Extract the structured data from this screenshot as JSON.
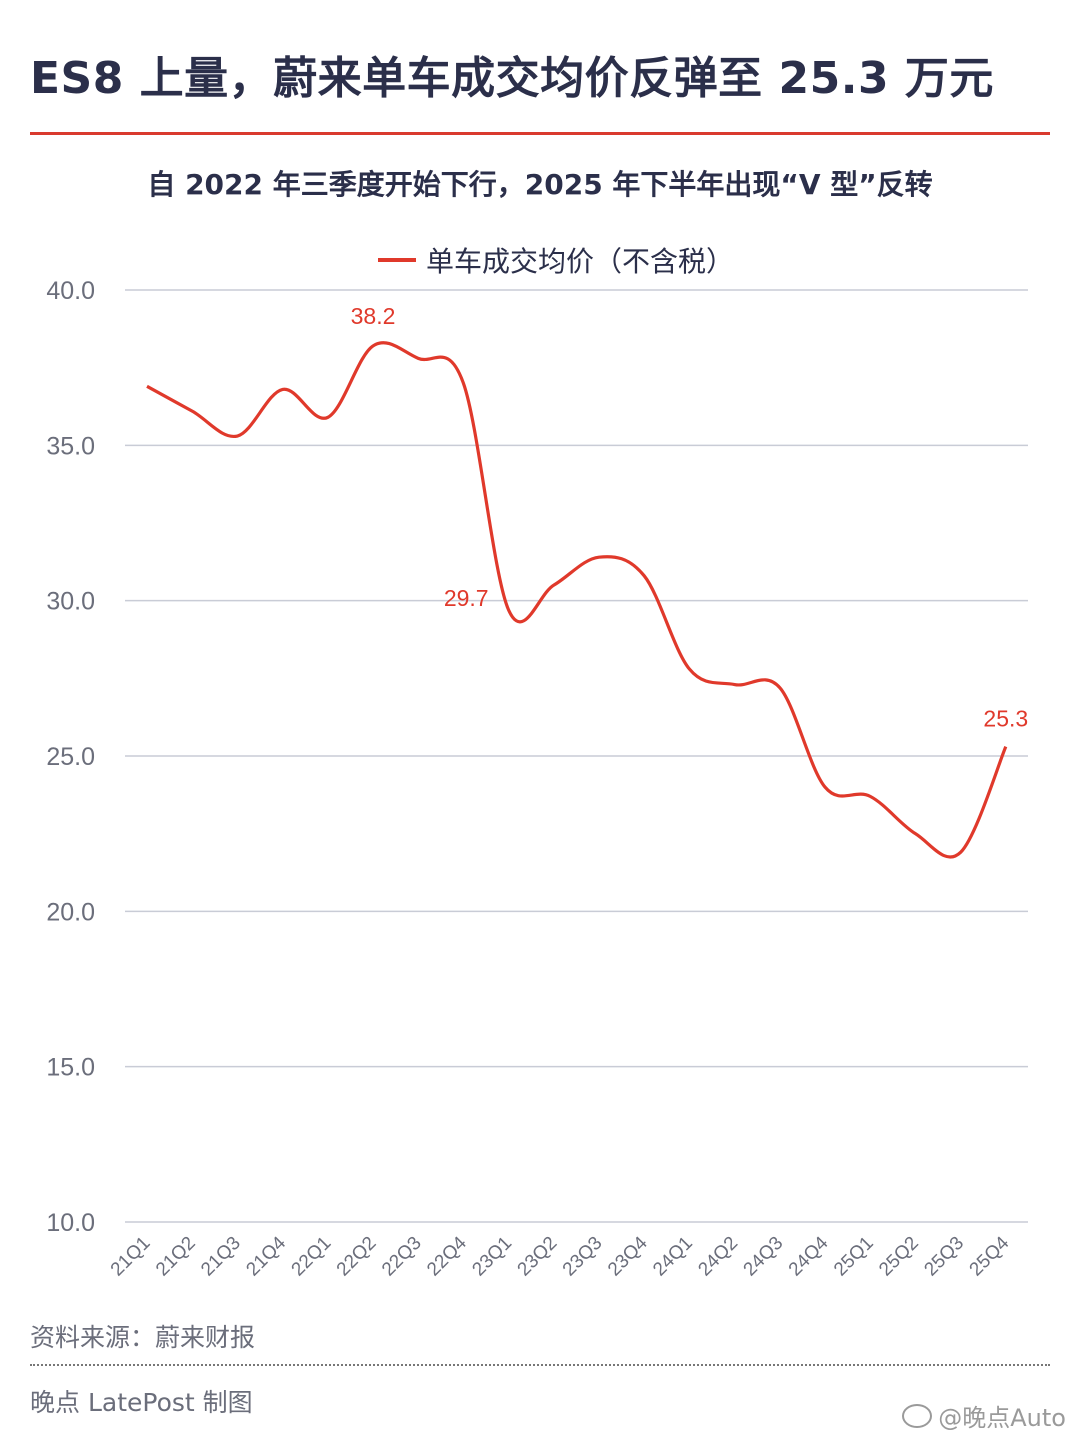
{
  "header": {
    "title": "ES8 上量，蔚来单车成交均价反弹至 25.3 万元",
    "subtitle": "自 2022 年三季度开始下行，2025 年下半年出现“V 型”反转"
  },
  "colors": {
    "line": "#e0392b",
    "accent_rule": "#d93a2e",
    "text_dark": "#2b2f4a",
    "axis_text": "#6b6e7b",
    "grid": "#c9ccd6"
  },
  "chart_data": {
    "type": "line",
    "categories": [
      "21Q1",
      "21Q2",
      "21Q3",
      "21Q4",
      "22Q1",
      "22Q2",
      "22Q3",
      "22Q4",
      "23Q1",
      "23Q2",
      "23Q3",
      "23Q4",
      "24Q1",
      "24Q2",
      "24Q3",
      "24Q4",
      "25Q1",
      "25Q2",
      "25Q3",
      "25Q4"
    ],
    "series": [
      {
        "name": "单车成交均价（不含税）",
        "values": [
          36.9,
          36.1,
          35.3,
          36.8,
          35.9,
          38.2,
          37.8,
          37.0,
          29.7,
          30.5,
          31.4,
          30.8,
          27.8,
          27.3,
          27.2,
          24.0,
          23.7,
          22.5,
          21.9,
          25.3
        ]
      }
    ],
    "labeled_points": [
      {
        "category": "22Q2",
        "label": "38.2"
      },
      {
        "category": "23Q1",
        "label": "29.7"
      },
      {
        "category": "25Q4",
        "label": "25.3"
      }
    ],
    "ylim": [
      10.0,
      40.0
    ],
    "yticks": [
      "10.0",
      "15.0",
      "20.0",
      "25.0",
      "30.0",
      "35.0",
      "40.0"
    ],
    "grid": true,
    "legend_position": "top-center",
    "xlabel": "",
    "ylabel": ""
  },
  "footer": {
    "source": "资料来源：蔚来财报",
    "credit": "晚点 LatePost 制图",
    "weibo_handle": "@晚点Auto"
  }
}
